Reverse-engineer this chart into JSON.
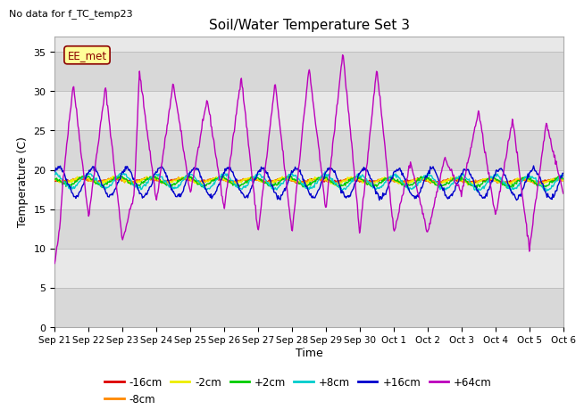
{
  "title": "Soil/Water Temperature Set 3",
  "xlabel": "Time",
  "ylabel": "Temperature (C)",
  "top_left_text": "No data for f_TC_temp23",
  "legend_label_text": "EE_met",
  "ylim": [
    0,
    37
  ],
  "yticks": [
    0,
    5,
    10,
    15,
    20,
    25,
    30,
    35
  ],
  "background_color": "#ffffff",
  "plot_bg_bands": [
    {
      "ymin": 0,
      "ymax": 5,
      "color": "#d8d8d8"
    },
    {
      "ymin": 5,
      "ymax": 10,
      "color": "#e8e8e8"
    },
    {
      "ymin": 10,
      "ymax": 15,
      "color": "#d8d8d8"
    },
    {
      "ymin": 15,
      "ymax": 20,
      "color": "#e8e8e8"
    },
    {
      "ymin": 20,
      "ymax": 25,
      "color": "#d8d8d8"
    },
    {
      "ymin": 25,
      "ymax": 30,
      "color": "#e8e8e8"
    },
    {
      "ymin": 30,
      "ymax": 35,
      "color": "#d8d8d8"
    },
    {
      "ymin": 35,
      "ymax": 37,
      "color": "#e8e8e8"
    }
  ],
  "series_colors": {
    "-16cm": "#dd0000",
    "-8cm": "#ff8800",
    "-2cm": "#eeee00",
    "+2cm": "#00cc00",
    "+8cm": "#00cccc",
    "+16cm": "#0000cc",
    "+64cm": "#bb00bb"
  },
  "xtick_labels": [
    "Sep 21",
    "Sep 22",
    "Sep 23",
    "Sep 24",
    "Sep 25",
    "Sep 26",
    "Sep 27",
    "Sep 28",
    "Sep 29",
    "Sep 30",
    "Oct 1",
    "Oct 2",
    "Oct 3",
    "Oct 4",
    "Oct 5",
    "Oct 6"
  ],
  "n_days": 15,
  "grid_color": "#bbbbbb",
  "linewidth": 1.0,
  "figsize": [
    6.4,
    4.8
  ],
  "dpi": 100
}
